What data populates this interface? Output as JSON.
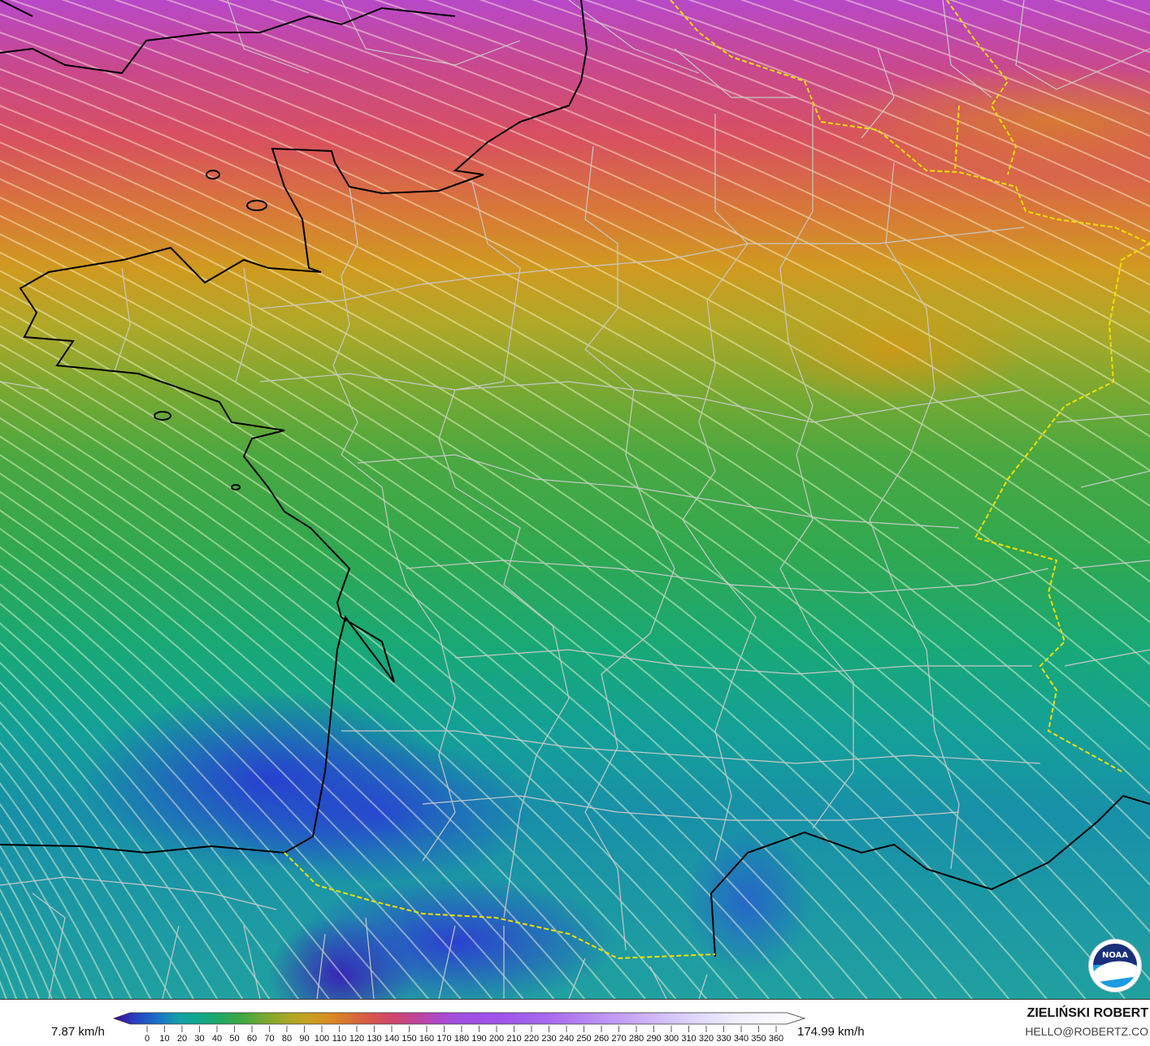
{
  "map": {
    "variable": "wind speed streamlines",
    "region": "France",
    "colors": {
      "land_borders": "#cccccc",
      "coastline": "#000000",
      "national_border": "#f0e000"
    }
  },
  "legend": {
    "min_label": "7.87 km/h",
    "max_label": "174.99 km/h",
    "ticks": [
      0,
      10,
      20,
      30,
      40,
      50,
      60,
      70,
      80,
      90,
      100,
      110,
      120,
      130,
      140,
      150,
      160,
      170,
      180,
      190,
      200,
      210,
      220,
      230,
      240,
      250,
      260,
      270,
      280,
      290,
      300,
      310,
      320,
      330,
      340,
      350,
      360
    ],
    "colorscale": [
      "#3a0a9a",
      "#2a40c0",
      "#1a70c8",
      "#14a0a8",
      "#10a888",
      "#22a860",
      "#44a840",
      "#78a830",
      "#a8a828",
      "#c8a020",
      "#d88c24",
      "#d87034",
      "#d85450",
      "#d04470",
      "#c04498",
      "#b048c8",
      "#a050e0",
      "#a050e8",
      "#a055ea",
      "#a060ec",
      "#a868ee",
      "#b078f0",
      "#b888f2",
      "#c098f4",
      "#c8a8f6",
      "#d0b8f8",
      "#d8c8fa",
      "#e0d8fb",
      "#e8e4fc",
      "#f0eefd",
      "#f6f4fe",
      "#fafafe",
      "#ffffff"
    ]
  },
  "credits": {
    "author": "ZIELIŃSKI ROBERT",
    "email": "HELLO@ROBERTZ.CO",
    "logo": "NOAA"
  }
}
